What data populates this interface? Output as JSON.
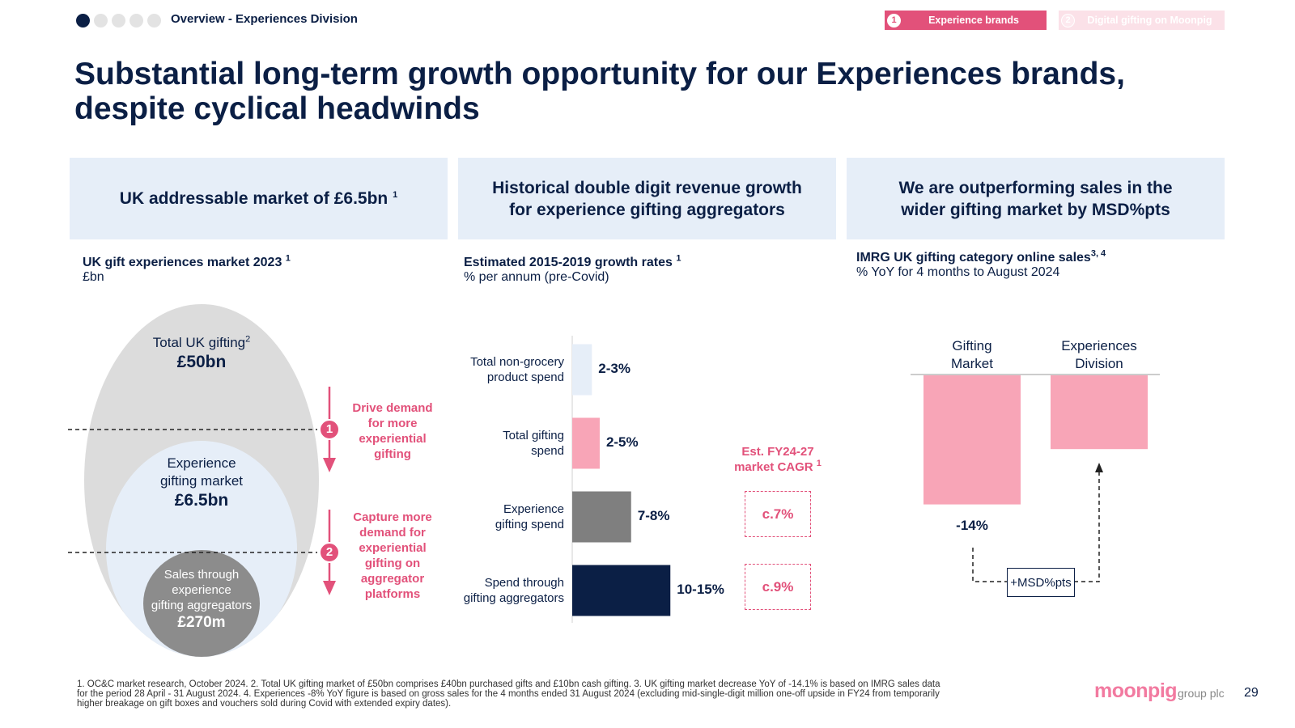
{
  "header": {
    "section_label": "Overview - Experiences Division",
    "tabs": [
      {
        "num": "1",
        "label": "Experience brands",
        "active": true
      },
      {
        "num": "2",
        "label": "Digital gifting on Moonpig",
        "active": false
      }
    ]
  },
  "title": {
    "line1": "Substantial long-term growth opportunity for our Experiences brands,",
    "line2": "despite cyclical headwinds"
  },
  "panel1": {
    "header": "UK addressable market of £6.5bn",
    "header_sup": "1",
    "subtitle": "UK gift experiences market 2023",
    "subtitle_sup": "1",
    "unit": "£bn",
    "outer_label": "Total UK gifting",
    "outer_sup": "2",
    "outer_value": "£50bn",
    "middle_label_1": "Experience",
    "middle_label_2": "gifting market",
    "middle_value": "£6.5bn",
    "inner_label_1": "Sales through",
    "inner_label_2": "experience",
    "inner_label_3": "gifting aggregators",
    "inner_value": "£270m",
    "step1_num": "1",
    "step1_l1": "Drive demand",
    "step1_l2": "for more",
    "step1_l3": "experiential",
    "step1_l4": "gifting",
    "step2_num": "2",
    "step2_l1": "Capture more",
    "step2_l2": "demand for",
    "step2_l3": "experiential",
    "step2_l4": "gifting on",
    "step2_l5": "aggregator",
    "step2_l6": "platforms"
  },
  "panel2": {
    "header_1": "Historical double digit revenue growth",
    "header_2": "for experience gifting aggregators",
    "subtitle": "Estimated 2015-2019 growth rates",
    "subtitle_sup": "1",
    "unit": "% per annum (pre-Covid)",
    "cagr_label_1": "Est. FY24-27",
    "cagr_label_2": "market CAGR",
    "cagr_sup": "1",
    "cagr_values": [
      "c.7%",
      "c.9%"
    ],
    "colors": {
      "light": "#e6eef8",
      "pink": "#f8a5b7",
      "grey": "#7f7f7f",
      "navy": "#0b1f45"
    }
  },
  "panel3": {
    "header_1": "We are outperforming sales in the",
    "header_2": "wider gifting market by MSD%pts",
    "subtitle": "IMRG UK gifting category online sales",
    "subtitle_sup": "3, 4",
    "unit": "% YoY for 4 months to August 2024",
    "gap_label": "+MSD%pts"
  },
  "chart_data": [
    {
      "type": "bar",
      "title": "Estimated 2015-2019 growth rates",
      "ylabel": "% per annum (pre-Covid)",
      "categories": [
        {
          "line1": "Total non-grocery",
          "line2": "product spend"
        },
        {
          "line1": "Total gifting",
          "line2": "spend"
        },
        {
          "line1": "Experience",
          "line2": "gifting spend"
        },
        {
          "line1": "Spend through",
          "line2": "gifting aggregators"
        }
      ],
      "values": [
        2.5,
        3.5,
        7.5,
        12.5
      ],
      "labels": [
        "2-3%",
        "2-5%",
        "7-8%",
        "10-15%"
      ],
      "orientation": "horizontal"
    },
    {
      "type": "bar",
      "title": "IMRG UK gifting category online sales",
      "ylabel": "% YoY for 4 months to August 2024",
      "categories": [
        {
          "line1": "Gifting",
          "line2": "Market"
        },
        {
          "line1": "Experiences",
          "line2": "Division"
        }
      ],
      "values": [
        -14,
        -8
      ],
      "labels": [
        "-14%",
        ""
      ]
    }
  ],
  "footer": {
    "footnote_1": "1. OC&C market research, October 2024. 2. Total UK gifting market of £50bn comprises £40bn purchased gifts and £10bn cash gifting. 3. UK gifting market decrease YoY of -14.1% is based on IMRG sales data",
    "footnote_2": "for the period 28 April - 31 August 2024. 4. Experiences -8% YoY figure is based on gross sales for the 4 months ended 31 August 2024 (excluding mid-single-digit million one-off upside in FY24 from temporarily",
    "footnote_3": "higher breakage on gift boxes and vouchers sold during Covid with extended expiry dates).",
    "brand": "moonpig",
    "brand_suffix": "group plc",
    "page_number": "29"
  }
}
